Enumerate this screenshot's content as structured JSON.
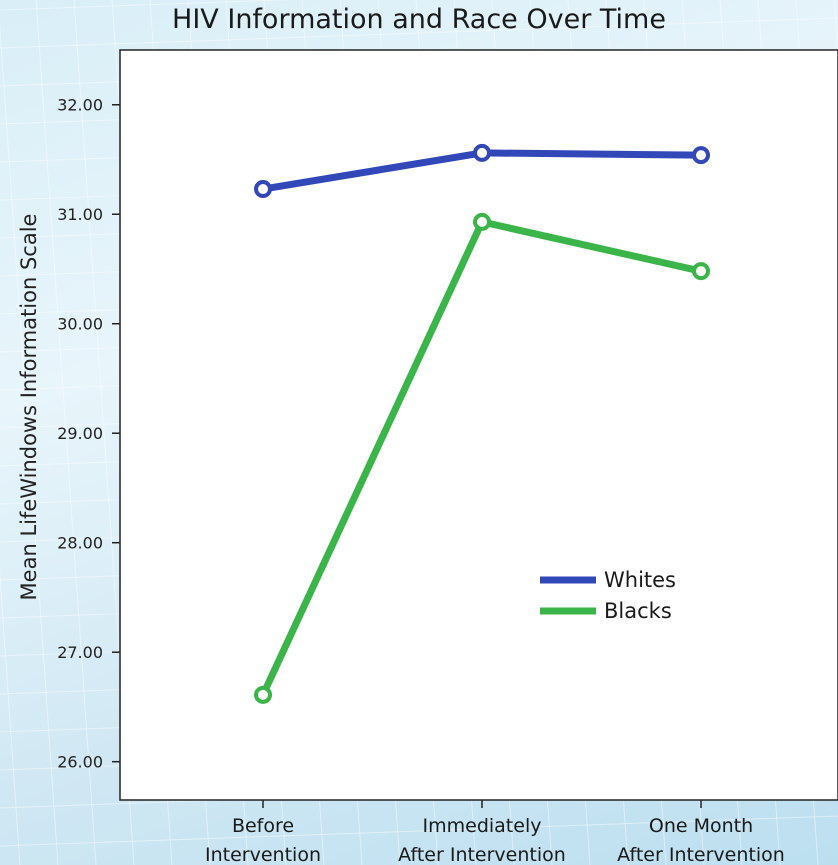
{
  "chart_data": {
    "type": "line",
    "title": "HIV Information and Race Over Time",
    "xlabel": "",
    "ylabel": "Mean LifeWindows Information Scale",
    "categories": [
      [
        "Before",
        "Intervention"
      ],
      [
        "Immediately",
        "After Intervention"
      ],
      [
        "One Month",
        "After Intervention"
      ]
    ],
    "series": [
      {
        "name": "Whites",
        "values": [
          31.23,
          31.56,
          31.54
        ],
        "color": "#3348b8"
      },
      {
        "name": "Blacks",
        "values": [
          26.61,
          30.93,
          30.48
        ],
        "color": "#3bb54a"
      }
    ],
    "ylim": [
      25.65,
      32.5
    ],
    "yticks": [
      "26.00",
      "27.00",
      "28.00",
      "29.00",
      "30.00",
      "31.00",
      "32.00"
    ],
    "grid": false,
    "legend_position": "lower-right"
  }
}
